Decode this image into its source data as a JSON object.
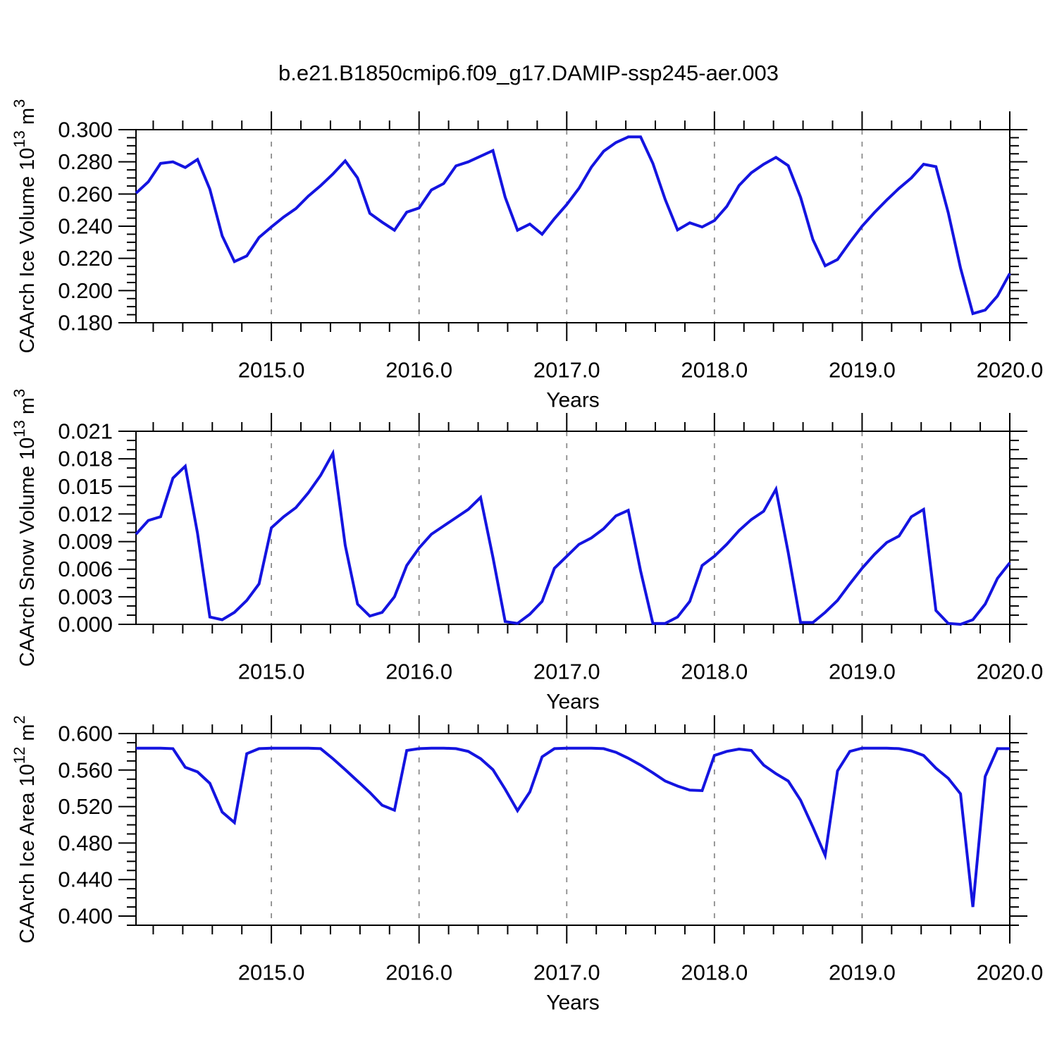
{
  "title": "b.e21.B1850cmip6.f09_g17.DAMIP-ssp245-aer.003",
  "x_axis": {
    "label": "Years",
    "range": [
      2014.0833,
      2020.0
    ],
    "ticks": [
      {
        "label": "2015.0",
        "year": 2015.0
      },
      {
        "label": "2016.0",
        "year": 2016.0
      },
      {
        "label": "2017.0",
        "year": 2017.0
      },
      {
        "label": "2018.0",
        "year": 2018.0
      },
      {
        "label": "2019.0",
        "year": 2019.0
      },
      {
        "label": "2020.0",
        "year": 2020.0
      }
    ],
    "minor_step": 0.2,
    "grid_years": [
      2015,
      2016,
      2017,
      2018,
      2019
    ]
  },
  "style": {
    "line_color": "#1414e0",
    "grid_color": "#8c8c8c",
    "axis_color": "#000000",
    "background": "#ffffff"
  },
  "chart_data": [
    {
      "id": "ice-volume",
      "type": "line",
      "ylabel_text": "CAArch Ice Volume 10^13 m^3",
      "ylabel": {
        "pre": "CAArch Ice Volume 10",
        "sup1": "13",
        "mid": " m",
        "sup2": "3"
      },
      "xlabel": "Years",
      "y_range": [
        0.18,
        0.3
      ],
      "y_major_step": 0.02,
      "y_minor_step": 0.005,
      "y_ticks": [
        "0.180",
        "0.200",
        "0.220",
        "0.240",
        "0.260",
        "0.280",
        "0.300"
      ],
      "x_start": 2014.0833,
      "x_end": 2020.0,
      "values": [
        0.2605,
        0.2676,
        0.279,
        0.28,
        0.2765,
        0.2815,
        0.263,
        0.234,
        0.218,
        0.2215,
        0.233,
        0.2395,
        0.2457,
        0.251,
        0.2587,
        0.2652,
        0.2724,
        0.2806,
        0.27,
        0.248,
        0.2425,
        0.2375,
        0.2487,
        0.2513,
        0.2625,
        0.2665,
        0.2775,
        0.28,
        0.2835,
        0.287,
        0.258,
        0.2375,
        0.2413,
        0.235,
        0.2447,
        0.2535,
        0.2636,
        0.2767,
        0.2866,
        0.292,
        0.2955,
        0.2955,
        0.279,
        0.2566,
        0.2377,
        0.2421,
        0.2395,
        0.2435,
        0.2522,
        0.2653,
        0.2732,
        0.2785,
        0.2828,
        0.2776,
        0.258,
        0.2317,
        0.2154,
        0.2193,
        0.23,
        0.24,
        0.2485,
        0.2563,
        0.2635,
        0.27,
        0.2785,
        0.277,
        0.2483,
        0.214,
        0.1857,
        0.1879,
        0.1966,
        0.2106
      ]
    },
    {
      "id": "snow-volume",
      "type": "line",
      "ylabel_text": "CAArch Snow Volume 10^13 m^3",
      "ylabel": {
        "pre": "CAArch Snow Volume 10",
        "sup1": "13",
        "mid": " m",
        "sup2": "3"
      },
      "xlabel": "Years",
      "y_range": [
        0.0,
        0.021
      ],
      "y_major_step": 0.003,
      "y_minor_step": 0.001,
      "y_ticks": [
        "0.000",
        "0.003",
        "0.006",
        "0.009",
        "0.012",
        "0.015",
        "0.018",
        "0.021"
      ],
      "x_start": 2014.0833,
      "x_end": 2020.0,
      "values": [
        0.0098,
        0.0113,
        0.0117,
        0.0159,
        0.0172,
        0.0099,
        0.0008,
        0.0005,
        0.0013,
        0.0026,
        0.0044,
        0.0105,
        0.0117,
        0.0127,
        0.0143,
        0.0162,
        0.0186,
        0.0086,
        0.0022,
        0.0009,
        0.0013,
        0.003,
        0.0064,
        0.0083,
        0.0098,
        0.0107,
        0.0116,
        0.0125,
        0.0138,
        0.0073,
        0.0003,
        0.0001,
        0.0011,
        0.0025,
        0.0061,
        0.0074,
        0.0087,
        0.0094,
        0.0104,
        0.0118,
        0.0124,
        0.0058,
        0.0001,
        0.0001,
        0.0008,
        0.0025,
        0.0064,
        0.0074,
        0.0087,
        0.0102,
        0.0114,
        0.0123,
        0.0147,
        0.0078,
        0.0002,
        0.0002,
        0.0013,
        0.0026,
        0.0044,
        0.0061,
        0.0076,
        0.0089,
        0.0096,
        0.0117,
        0.0125,
        0.0015,
        0.0001,
        0.0,
        0.0005,
        0.0022,
        0.005,
        0.0067
      ]
    },
    {
      "id": "ice-area",
      "type": "line",
      "ylabel_text": "CAArch Ice Area 10^12 m^2",
      "ylabel": {
        "pre": "CAArch Ice Area 10",
        "sup1": "12",
        "mid": " m",
        "sup2": "2"
      },
      "xlabel": "Years",
      "y_range": [
        0.39,
        0.6
      ],
      "y_major_step": 0.04,
      "y_minor_step": 0.01,
      "y_ticks": [
        "0.400",
        "0.440",
        "0.480",
        "0.520",
        "0.560",
        "0.600"
      ],
      "x_start": 2014.0833,
      "x_end": 2020.0,
      "values": [
        0.584,
        0.584,
        0.584,
        0.5835,
        0.563,
        0.558,
        0.5455,
        0.514,
        0.5025,
        0.578,
        0.5835,
        0.584,
        0.584,
        0.584,
        0.584,
        0.5835,
        0.5725,
        0.5605,
        0.548,
        0.5355,
        0.5215,
        0.516,
        0.5815,
        0.5835,
        0.584,
        0.584,
        0.5835,
        0.5805,
        0.5725,
        0.5605,
        0.539,
        0.5155,
        0.536,
        0.5745,
        0.5835,
        0.584,
        0.584,
        0.584,
        0.5835,
        0.5795,
        0.573,
        0.5655,
        0.557,
        0.548,
        0.5425,
        0.538,
        0.5375,
        0.576,
        0.5805,
        0.583,
        0.5815,
        0.5655,
        0.556,
        0.548,
        0.527,
        0.4975,
        0.4665,
        0.559,
        0.5805,
        0.584,
        0.584,
        0.584,
        0.5835,
        0.581,
        0.576,
        0.562,
        0.551,
        0.534,
        0.41,
        0.553,
        0.5835,
        0.5835
      ]
    }
  ]
}
